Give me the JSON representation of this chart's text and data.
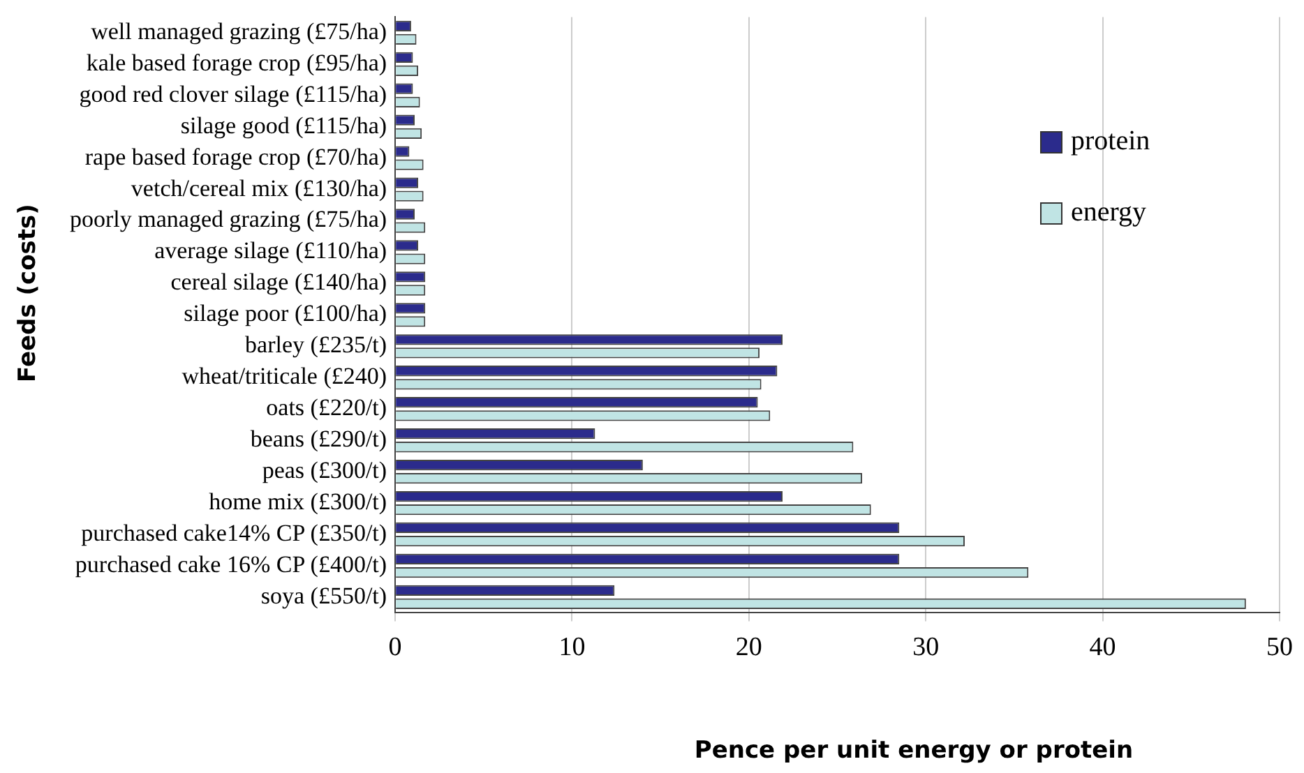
{
  "chart_data": {
    "type": "bar",
    "orientation": "horizontal",
    "xlabel": "Pence per unit energy or protein",
    "ylabel": "Feeds (costs)",
    "categories": [
      "well managed grazing (£75/ha)",
      "kale based forage crop (£95/ha)",
      "good red clover silage (£115/ha)",
      "silage good (£115/ha)",
      "rape based forage crop (£70/ha)",
      "vetch/cereal mix (£130/ha)",
      "poorly managed grazing (£75/ha)",
      "average silage (£110/ha)",
      "cereal silage (£140/ha)",
      "silage poor (£100/ha)",
      "barley (£235/t)",
      "wheat/triticale (£240)",
      "oats (£220/t)",
      "beans (£290/t)",
      "peas (£300/t)",
      "home mix (£300/t)",
      "purchased cake14% CP (£350/t)",
      "purchased cake 16% CP (£400/t)",
      "soya (£550/t)"
    ],
    "series": [
      {
        "name": "protein",
        "color": "#2b2b8c",
        "values": [
          0.9,
          1.0,
          1.0,
          1.1,
          0.8,
          1.3,
          1.1,
          1.3,
          1.7,
          1.7,
          21.9,
          21.6,
          20.5,
          11.3,
          14.0,
          21.9,
          28.5,
          28.5,
          12.4
        ]
      },
      {
        "name": "energy",
        "color": "#c0e4e4",
        "values": [
          1.2,
          1.3,
          1.4,
          1.5,
          1.6,
          1.6,
          1.7,
          1.7,
          1.7,
          1.7,
          20.6,
          20.7,
          21.2,
          25.9,
          26.4,
          26.9,
          32.2,
          35.8,
          48.1
        ]
      }
    ],
    "xlim": [
      0,
      50
    ],
    "xticks": [
      0,
      10,
      20,
      30,
      40,
      50
    ],
    "grid": "x",
    "legend": "top right"
  }
}
